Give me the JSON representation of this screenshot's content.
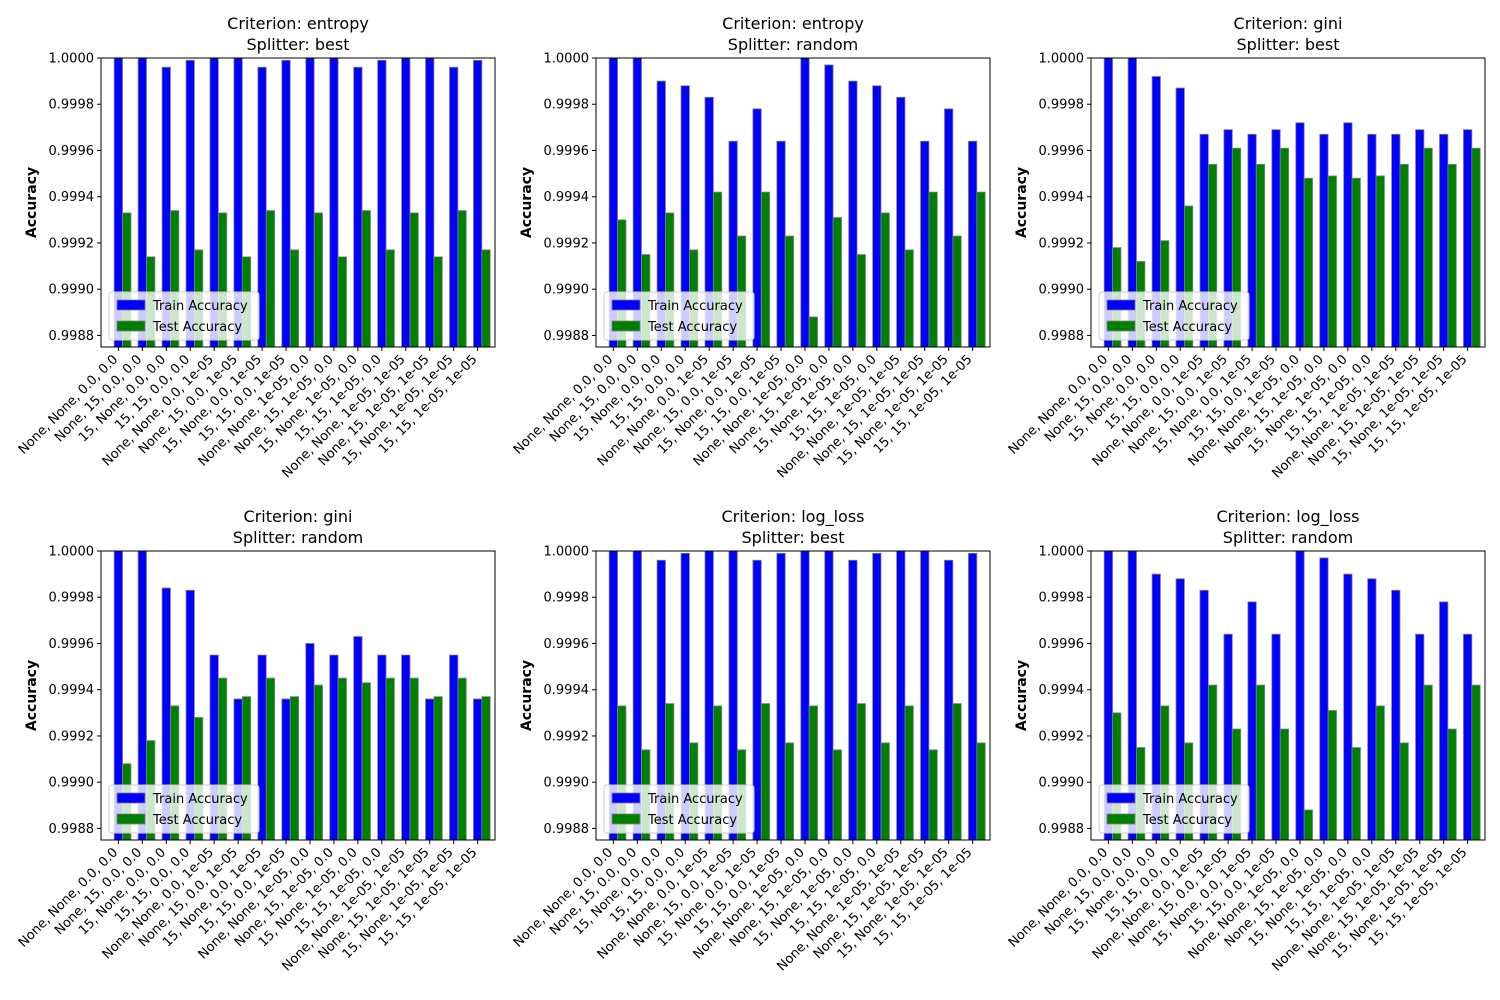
{
  "chart_data": [
    {
      "type": "bar",
      "title_line1": "Criterion: entropy",
      "title_line2": "Splitter: best",
      "ylabel": "Accuracy",
      "categories": [
        "None, None, 0.0, 0.0",
        "None, 15, 0.0, 0.0",
        "15, None, 0.0, 0.0",
        "15, 15, 0.0, 0.0",
        "None, None, 0.0, 1e-05",
        "None, 15, 0.0, 1e-05",
        "15, None, 0.0, 1e-05",
        "15, 15, 0.0, 1e-05",
        "None, None, 1e-05, 0.0",
        "None, 15, 1e-05, 0.0",
        "15, None, 1e-05, 0.0",
        "15, 15, 1e-05, 0.0",
        "None, None, 1e-05, 1e-05",
        "None, 15, 1e-05, 1e-05",
        "15, None, 1e-05, 1e-05",
        "15, 15, 1e-05, 1e-05"
      ],
      "ylim": [
        0.99875,
        1.0
      ],
      "yticks": [
        "0.9988",
        "0.9990",
        "0.9992",
        "0.9994",
        "0.9996",
        "0.9998",
        "1.0000"
      ],
      "legend": "lower-left",
      "series": [
        {
          "name": "Train Accuracy",
          "color": "#0000ff",
          "values": [
            1.0,
            1.0,
            0.99996,
            0.99999,
            1.0,
            1.0,
            0.99996,
            0.99999,
            1.0,
            1.0,
            0.99996,
            0.99999,
            1.0,
            1.0,
            0.99996,
            0.99999
          ]
        },
        {
          "name": "Test Accuracy",
          "color": "#008000",
          "values": [
            0.99933,
            0.99914,
            0.99934,
            0.99917,
            0.99933,
            0.99914,
            0.99934,
            0.99917,
            0.99933,
            0.99914,
            0.99934,
            0.99917,
            0.99933,
            0.99914,
            0.99934,
            0.99917
          ]
        }
      ]
    },
    {
      "type": "bar",
      "title_line1": "Criterion: entropy",
      "title_line2": "Splitter: random",
      "ylabel": "Accuracy",
      "categories": [
        "None, None, 0.0, 0.0",
        "None, 15, 0.0, 0.0",
        "15, None, 0.0, 0.0",
        "15, 15, 0.0, 0.0",
        "None, None, 0.0, 1e-05",
        "None, 15, 0.0, 1e-05",
        "15, None, 0.0, 1e-05",
        "15, 15, 0.0, 1e-05",
        "None, None, 1e-05, 0.0",
        "None, 15, 1e-05, 0.0",
        "15, None, 1e-05, 0.0",
        "15, 15, 1e-05, 0.0",
        "None, None, 1e-05, 1e-05",
        "None, 15, 1e-05, 1e-05",
        "15, None, 1e-05, 1e-05",
        "15, 15, 1e-05, 1e-05"
      ],
      "ylim": [
        0.99875,
        1.0
      ],
      "yticks": [
        "0.9988",
        "0.9990",
        "0.9992",
        "0.9994",
        "0.9996",
        "0.9998",
        "1.0000"
      ],
      "legend": "lower-left",
      "series": [
        {
          "name": "Train Accuracy",
          "color": "#0000ff",
          "values": [
            1.0,
            1.0,
            0.9999,
            0.99988,
            0.99983,
            0.99964,
            0.99978,
            0.99964,
            1.0,
            0.99997,
            0.9999,
            0.99988,
            0.99983,
            0.99964,
            0.99978,
            0.99964
          ]
        },
        {
          "name": "Test Accuracy",
          "color": "#008000",
          "values": [
            0.9993,
            0.99915,
            0.99933,
            0.99917,
            0.99942,
            0.99923,
            0.99942,
            0.99923,
            0.99888,
            0.99931,
            0.99915,
            0.99933,
            0.99917,
            0.99942,
            0.99923,
            0.99942
          ]
        }
      ]
    },
    {
      "type": "bar",
      "title_line1": "Criterion: gini",
      "title_line2": "Splitter: best",
      "ylabel": "Accuracy",
      "categories": [
        "None, None, 0.0, 0.0",
        "None, 15, 0.0, 0.0",
        "15, None, 0.0, 0.0",
        "15, 15, 0.0, 0.0",
        "None, None, 0.0, 1e-05",
        "None, 15, 0.0, 1e-05",
        "15, None, 0.0, 1e-05",
        "15, 15, 0.0, 1e-05",
        "None, None, 1e-05, 0.0",
        "None, 15, 1e-05, 0.0",
        "15, None, 1e-05, 0.0",
        "15, 15, 1e-05, 0.0",
        "None, None, 1e-05, 1e-05",
        "None, 15, 1e-05, 1e-05",
        "15, None, 1e-05, 1e-05",
        "15, 15, 1e-05, 1e-05"
      ],
      "ylim": [
        0.99875,
        1.0
      ],
      "yticks": [
        "0.9988",
        "0.9990",
        "0.9992",
        "0.9994",
        "0.9996",
        "0.9998",
        "1.0000"
      ],
      "legend": "lower-left",
      "series": [
        {
          "name": "Train Accuracy",
          "color": "#0000ff",
          "values": [
            1.0,
            1.0,
            0.99992,
            0.99987,
            0.99967,
            0.99969,
            0.99967,
            0.99969,
            0.99972,
            0.99967,
            0.99972,
            0.99967,
            0.99967,
            0.99969,
            0.99967,
            0.99969
          ]
        },
        {
          "name": "Test Accuracy",
          "color": "#008000",
          "values": [
            0.99918,
            0.99912,
            0.99921,
            0.99936,
            0.99954,
            0.99961,
            0.99954,
            0.99961,
            0.99948,
            0.99949,
            0.99948,
            0.99949,
            0.99954,
            0.99961,
            0.99954,
            0.99961
          ]
        }
      ]
    },
    {
      "type": "bar",
      "title_line1": "Criterion: gini",
      "title_line2": "Splitter: random",
      "ylabel": "Accuracy",
      "categories": [
        "None, None, 0.0, 0.0",
        "None, 15, 0.0, 0.0",
        "15, None, 0.0, 0.0",
        "15, 15, 0.0, 0.0",
        "None, None, 0.0, 1e-05",
        "None, 15, 0.0, 1e-05",
        "15, None, 0.0, 1e-05",
        "15, 15, 0.0, 1e-05",
        "None, None, 1e-05, 0.0",
        "None, 15, 1e-05, 0.0",
        "15, None, 1e-05, 0.0",
        "15, 15, 1e-05, 0.0",
        "None, None, 1e-05, 1e-05",
        "None, 15, 1e-05, 1e-05",
        "15, None, 1e-05, 1e-05",
        "15, 15, 1e-05, 1e-05"
      ],
      "ylim": [
        0.99875,
        1.0
      ],
      "yticks": [
        "0.9988",
        "0.9990",
        "0.9992",
        "0.9994",
        "0.9996",
        "0.9998",
        "1.0000"
      ],
      "legend": "lower-left",
      "series": [
        {
          "name": "Train Accuracy",
          "color": "#0000ff",
          "values": [
            1.0,
            1.0,
            0.99984,
            0.99983,
            0.99955,
            0.99936,
            0.99955,
            0.99936,
            0.9996,
            0.99955,
            0.99963,
            0.99955,
            0.99955,
            0.99936,
            0.99955,
            0.99936
          ]
        },
        {
          "name": "Test Accuracy",
          "color": "#008000",
          "values": [
            0.99908,
            0.99918,
            0.99933,
            0.99928,
            0.99945,
            0.99937,
            0.99945,
            0.99937,
            0.99942,
            0.99945,
            0.99943,
            0.99945,
            0.99945,
            0.99937,
            0.99945,
            0.99937
          ]
        }
      ]
    },
    {
      "type": "bar",
      "title_line1": "Criterion: log_loss",
      "title_line2": "Splitter: best",
      "ylabel": "Accuracy",
      "categories": [
        "None, None, 0.0, 0.0",
        "None, 15, 0.0, 0.0",
        "15, None, 0.0, 0.0",
        "15, 15, 0.0, 0.0",
        "None, None, 0.0, 1e-05",
        "None, 15, 0.0, 1e-05",
        "15, None, 0.0, 1e-05",
        "15, 15, 0.0, 1e-05",
        "None, None, 1e-05, 0.0",
        "None, 15, 1e-05, 0.0",
        "15, None, 1e-05, 0.0",
        "15, 15, 1e-05, 0.0",
        "None, None, 1e-05, 1e-05",
        "None, 15, 1e-05, 1e-05",
        "15, None, 1e-05, 1e-05",
        "15, 15, 1e-05, 1e-05"
      ],
      "ylim": [
        0.99875,
        1.0
      ],
      "yticks": [
        "0.9988",
        "0.9990",
        "0.9992",
        "0.9994",
        "0.9996",
        "0.9998",
        "1.0000"
      ],
      "legend": "lower-left",
      "series": [
        {
          "name": "Train Accuracy",
          "color": "#0000ff",
          "values": [
            1.0,
            1.0,
            0.99996,
            0.99999,
            1.0,
            1.0,
            0.99996,
            0.99999,
            1.0,
            1.0,
            0.99996,
            0.99999,
            1.0,
            1.0,
            0.99996,
            0.99999
          ]
        },
        {
          "name": "Test Accuracy",
          "color": "#008000",
          "values": [
            0.99933,
            0.99914,
            0.99934,
            0.99917,
            0.99933,
            0.99914,
            0.99934,
            0.99917,
            0.99933,
            0.99914,
            0.99934,
            0.99917,
            0.99933,
            0.99914,
            0.99934,
            0.99917
          ]
        }
      ]
    },
    {
      "type": "bar",
      "title_line1": "Criterion: log_loss",
      "title_line2": "Splitter: random",
      "ylabel": "Accuracy",
      "categories": [
        "None, None, 0.0, 0.0",
        "None, 15, 0.0, 0.0",
        "15, None, 0.0, 0.0",
        "15, 15, 0.0, 0.0",
        "None, None, 0.0, 1e-05",
        "None, 15, 0.0, 1e-05",
        "15, None, 0.0, 1e-05",
        "15, 15, 0.0, 1e-05",
        "None, None, 1e-05, 0.0",
        "None, 15, 1e-05, 0.0",
        "15, None, 1e-05, 0.0",
        "15, 15, 1e-05, 0.0",
        "None, None, 1e-05, 1e-05",
        "None, 15, 1e-05, 1e-05",
        "15, None, 1e-05, 1e-05",
        "15, 15, 1e-05, 1e-05"
      ],
      "ylim": [
        0.99875,
        1.0
      ],
      "yticks": [
        "0.9988",
        "0.9990",
        "0.9992",
        "0.9994",
        "0.9996",
        "0.9998",
        "1.0000"
      ],
      "legend": "lower-left",
      "series": [
        {
          "name": "Train Accuracy",
          "color": "#0000ff",
          "values": [
            1.0,
            1.0,
            0.9999,
            0.99988,
            0.99983,
            0.99964,
            0.99978,
            0.99964,
            1.0,
            0.99997,
            0.9999,
            0.99988,
            0.99983,
            0.99964,
            0.99978,
            0.99964
          ]
        },
        {
          "name": "Test Accuracy",
          "color": "#008000",
          "values": [
            0.9993,
            0.99915,
            0.99933,
            0.99917,
            0.99942,
            0.99923,
            0.99942,
            0.99923,
            0.99888,
            0.99931,
            0.99915,
            0.99933,
            0.99917,
            0.99942,
            0.99923,
            0.99942
          ]
        }
      ]
    }
  ]
}
